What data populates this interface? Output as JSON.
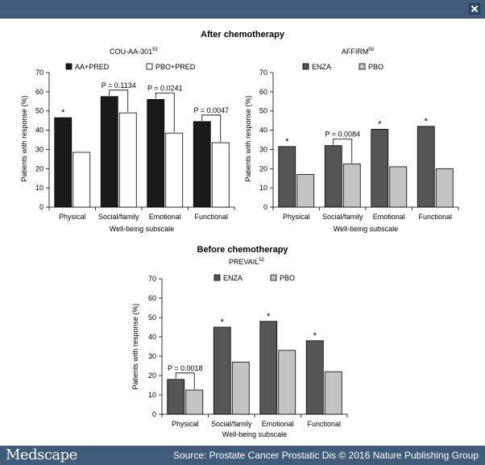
{
  "header": {
    "close_icon": "close-icon"
  },
  "sections": {
    "after_title": "After chemotherapy",
    "before_title": "Before chemotherapy"
  },
  "footer": {
    "brand": "Medscape",
    "source": "Source: Prostate Cancer Prostatic Dis © 2016 Nature Publishing Group"
  },
  "colors": {
    "aa_pred": "#1a1a1a",
    "enza": "#555555",
    "pbo_light": "#c4c4c4",
    "pbo_white": "#ffffff",
    "header_bar": "#3f5c7a"
  },
  "chart_data": [
    {
      "id": "cou",
      "type": "bar",
      "title": "COU-AA-301",
      "title_sup": "55",
      "xlabel": "Well-being subscale",
      "ylabel": "Patients with response (%)",
      "ylim": [
        0,
        70
      ],
      "yticks": [
        0,
        10,
        20,
        30,
        40,
        50,
        60,
        70
      ],
      "categories": [
        "Physical",
        "Social/family",
        "Emotional",
        "Functional"
      ],
      "series": [
        {
          "name": "AA+PRED",
          "color": "#1a1a1a",
          "values": [
            46.5,
            57.5,
            56,
            44.5
          ]
        },
        {
          "name": "PBO+PRED",
          "color": "#ffffff",
          "values": [
            28.5,
            49,
            38.5,
            33.5
          ]
        }
      ],
      "stars": [
        0
      ],
      "brackets": [
        {
          "category": 1,
          "label": "P = 0.1134"
        },
        {
          "category": 2,
          "label": "P = 0.0241"
        },
        {
          "category": 3,
          "label": "P = 0.0047"
        }
      ]
    },
    {
      "id": "affirm",
      "type": "bar",
      "title": "AFFIRM",
      "title_sup": "58",
      "xlabel": "Well-being subscale",
      "ylabel": "Patients with response (%)",
      "ylim": [
        0,
        70
      ],
      "yticks": [
        0,
        10,
        20,
        30,
        40,
        50,
        60,
        70
      ],
      "categories": [
        "Physical",
        "Social/family",
        "Emotional",
        "Functional"
      ],
      "series": [
        {
          "name": "ENZA",
          "color": "#555555",
          "values": [
            31.5,
            32,
            40.5,
            42
          ]
        },
        {
          "name": "PBO",
          "color": "#c4c4c4",
          "values": [
            17,
            22.5,
            21,
            20
          ]
        }
      ],
      "stars": [
        0,
        2,
        3
      ],
      "brackets": [
        {
          "category": 1,
          "label": "P = 0.0084"
        }
      ]
    },
    {
      "id": "prevail",
      "type": "bar",
      "title": "PREVAIL",
      "title_sup": "52",
      "xlabel": "Well-being subscale",
      "ylabel": "Patients with response (%)",
      "ylim": [
        0,
        70
      ],
      "yticks": [
        0,
        10,
        20,
        30,
        40,
        50,
        60,
        70
      ],
      "categories": [
        "Physical",
        "Social/family",
        "Emotional",
        "Functional"
      ],
      "series": [
        {
          "name": "ENZA",
          "color": "#555555",
          "values": [
            18,
            45,
            48,
            38
          ]
        },
        {
          "name": "PBO",
          "color": "#c4c4c4",
          "values": [
            12.5,
            27,
            33,
            22
          ]
        }
      ],
      "stars": [
        1,
        2,
        3
      ],
      "brackets": [
        {
          "category": 0,
          "label": "P = 0.0018"
        }
      ]
    }
  ]
}
